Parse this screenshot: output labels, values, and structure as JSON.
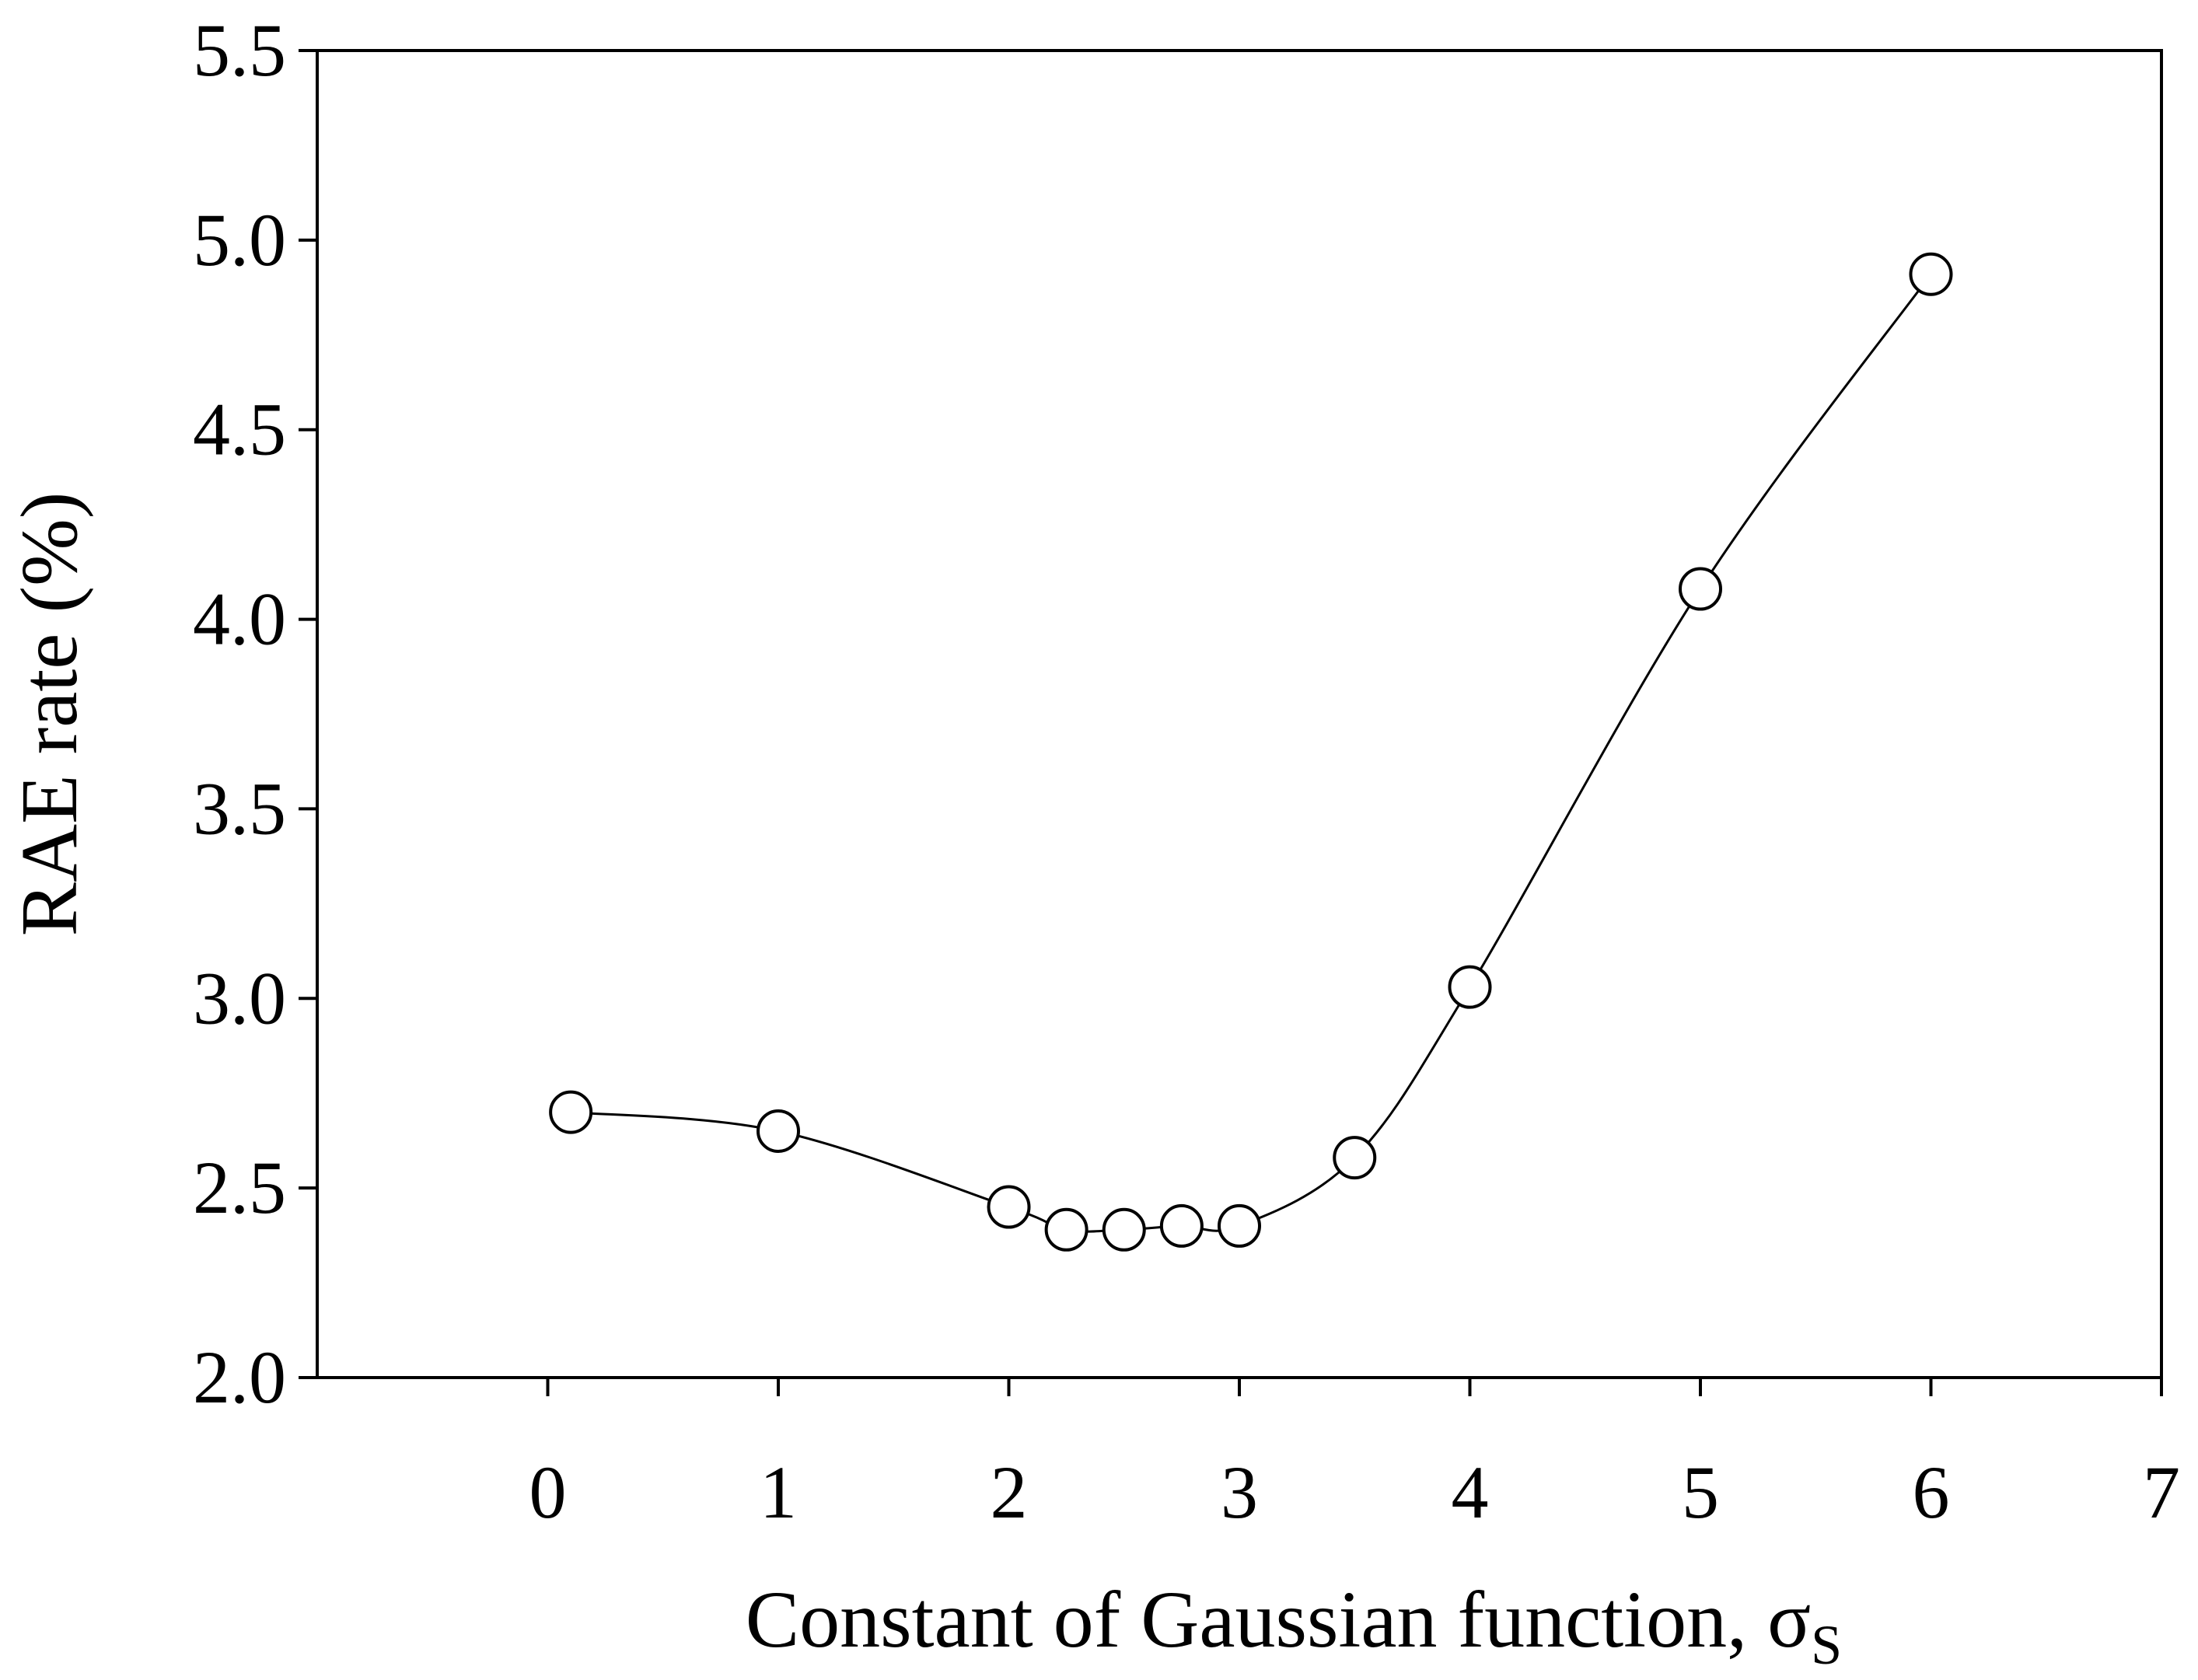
{
  "chart_data": {
    "type": "line",
    "title": "",
    "xlabel": "Constant of Gaussian function, ",
    "xlabel_symbol": "σ",
    "xlabel_subscript": "S",
    "ylabel": "RAE rate (%)",
    "xlim": [
      -1,
      7
    ],
    "ylim": [
      2.0,
      5.5
    ],
    "xticks": [
      0,
      1,
      2,
      3,
      4,
      5,
      6,
      7
    ],
    "xtick_labels": [
      "0",
      "1",
      "2",
      "3",
      "4",
      "5",
      "6",
      "7"
    ],
    "yticks": [
      2.0,
      2.5,
      3.0,
      3.5,
      4.0,
      4.5,
      5.0,
      5.5
    ],
    "ytick_labels": [
      "2.0",
      "2.5",
      "3.0",
      "3.5",
      "4.0",
      "4.5",
      "5.0",
      "5.5"
    ],
    "grid": false,
    "marker": "open-circle",
    "line_style": "smooth",
    "series": [
      {
        "x": [
          0.1,
          1,
          2,
          2.25,
          2.5,
          2.75,
          3,
          3.5,
          4,
          5,
          6
        ],
        "y": [
          2.7,
          2.65,
          2.45,
          2.39,
          2.39,
          2.4,
          2.4,
          2.58,
          3.03,
          4.08,
          4.91
        ]
      }
    ]
  }
}
